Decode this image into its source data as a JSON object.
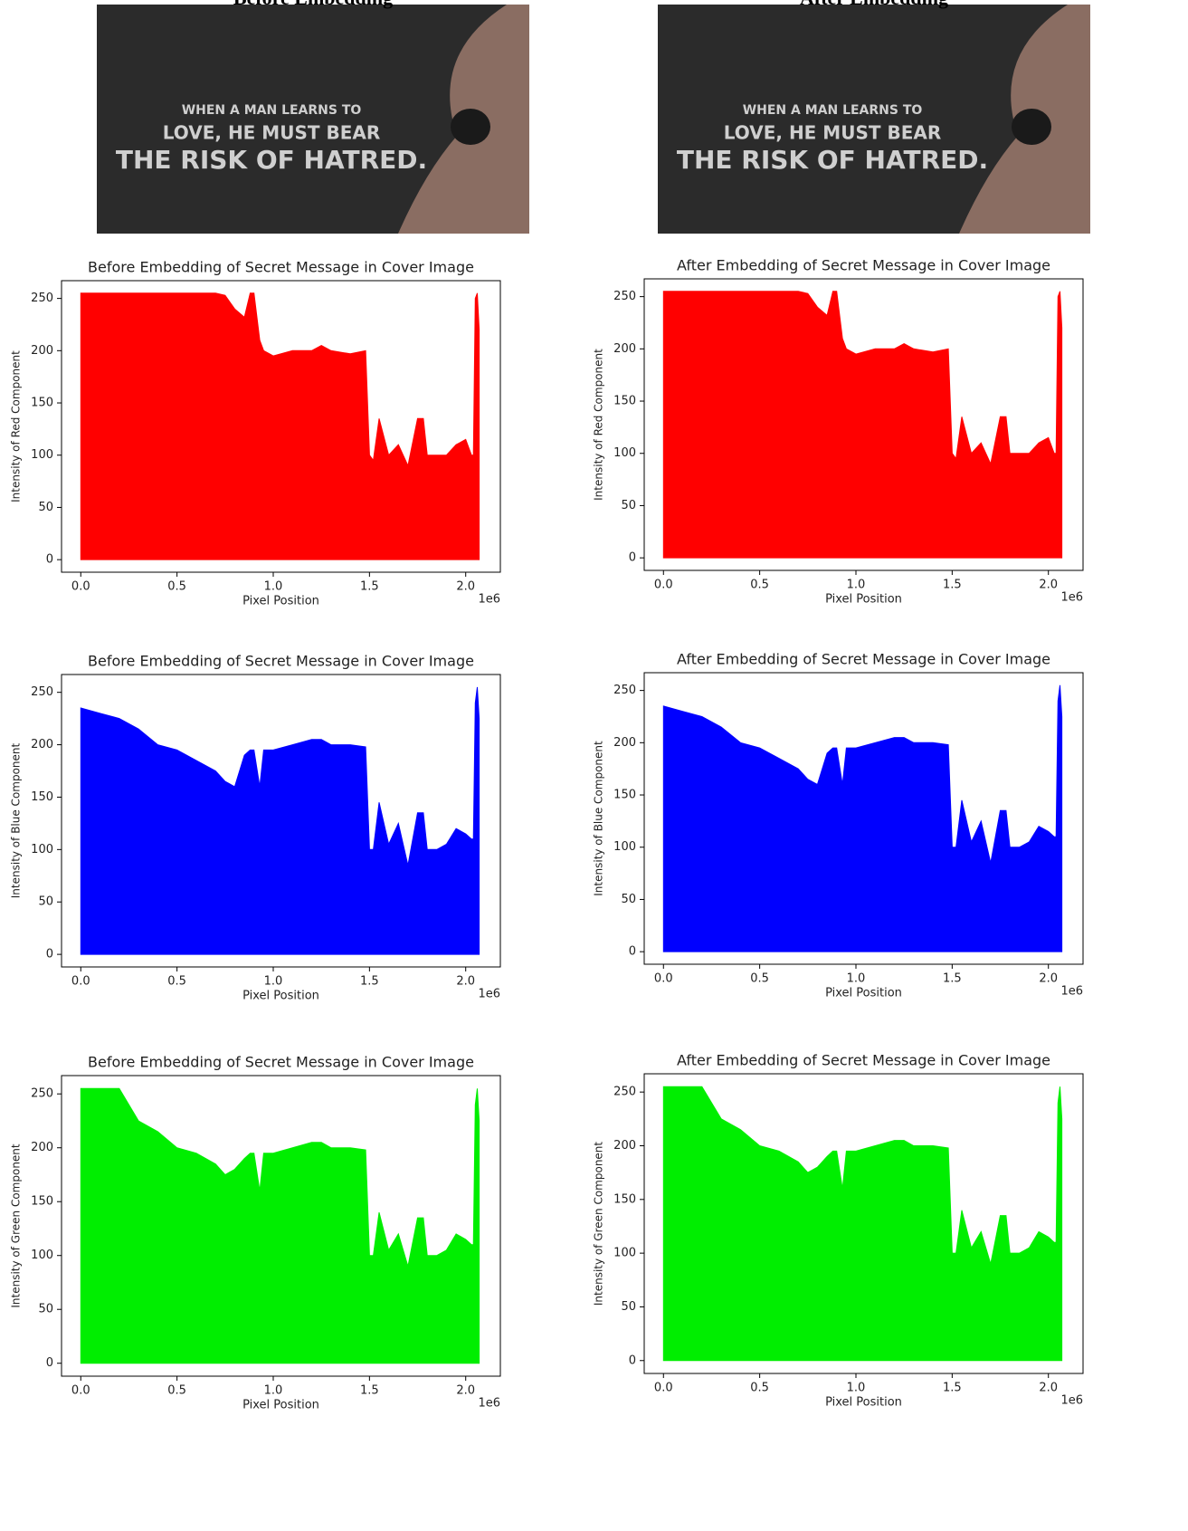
{
  "images": [
    {
      "caption": "Before Embedding",
      "lines": [
        "WHEN A MAN LEARNS TO",
        "LOVE, HE MUST BEAR",
        "THE RISK OF HATRED."
      ]
    },
    {
      "caption": "After Embedding",
      "lines": [
        "WHEN A MAN LEARNS TO",
        "LOVE, HE MUST BEAR",
        "THE RISK OF HATRED."
      ]
    }
  ],
  "chart_data": [
    {
      "type": "area",
      "title": "Before Embedding of Secret Message in Cover Image",
      "xlabel": "Pixel Position",
      "ylabel": "Intensity of Red Component",
      "x_offset_label": "1e6",
      "color": "#ff0000",
      "x": [
        0,
        100000,
        200000,
        300000,
        400000,
        500000,
        600000,
        700000,
        750000,
        800000,
        850000,
        880000,
        900000,
        930000,
        950000,
        1000000,
        1100000,
        1200000,
        1250000,
        1300000,
        1400000,
        1480000,
        1500000,
        1520000,
        1550000,
        1600000,
        1650000,
        1700000,
        1750000,
        1780000,
        1800000,
        1850000,
        1900000,
        1950000,
        2000000,
        2030000,
        2040000,
        2050000,
        2060000,
        2070000
      ],
      "values": [
        255,
        255,
        255,
        255,
        255,
        255,
        255,
        255,
        253,
        240,
        232,
        255,
        255,
        210,
        200,
        195,
        200,
        200,
        205,
        200,
        197,
        200,
        100,
        95,
        135,
        100,
        110,
        90,
        135,
        135,
        100,
        100,
        100,
        110,
        115,
        100,
        100,
        250,
        255,
        220
      ],
      "xlim": [
        -100000,
        2180000
      ],
      "ylim": [
        -12,
        267
      ],
      "xticks": [
        {
          "value": 0,
          "label": "0.0"
        },
        {
          "value": 500000,
          "label": "0.5"
        },
        {
          "value": 1000000,
          "label": "1.0"
        },
        {
          "value": 1500000,
          "label": "1.5"
        },
        {
          "value": 2000000,
          "label": "2.0"
        }
      ],
      "yticks": [
        0,
        50,
        100,
        150,
        200,
        250
      ]
    },
    {
      "type": "area",
      "title": "After Embedding of Secret Message in Cover Image",
      "xlabel": "Pixel Position",
      "ylabel": "Intensity of Red Component",
      "x_offset_label": "1e6",
      "color": "#ff0000",
      "x": [
        0,
        100000,
        200000,
        300000,
        400000,
        500000,
        600000,
        700000,
        750000,
        800000,
        850000,
        880000,
        900000,
        930000,
        950000,
        1000000,
        1100000,
        1200000,
        1250000,
        1300000,
        1400000,
        1480000,
        1500000,
        1520000,
        1550000,
        1600000,
        1650000,
        1700000,
        1750000,
        1780000,
        1800000,
        1850000,
        1900000,
        1950000,
        2000000,
        2030000,
        2040000,
        2050000,
        2060000,
        2070000
      ],
      "values": [
        255,
        255,
        255,
        255,
        255,
        255,
        255,
        255,
        253,
        240,
        232,
        255,
        255,
        210,
        200,
        195,
        200,
        200,
        205,
        200,
        197,
        200,
        100,
        95,
        135,
        100,
        110,
        90,
        135,
        135,
        100,
        100,
        100,
        110,
        115,
        100,
        100,
        250,
        255,
        220
      ],
      "xlim": [
        -100000,
        2180000
      ],
      "ylim": [
        -12,
        267
      ],
      "xticks": [
        {
          "value": 0,
          "label": "0.0"
        },
        {
          "value": 500000,
          "label": "0.5"
        },
        {
          "value": 1000000,
          "label": "1.0"
        },
        {
          "value": 1500000,
          "label": "1.5"
        },
        {
          "value": 2000000,
          "label": "2.0"
        }
      ],
      "yticks": [
        0,
        50,
        100,
        150,
        200,
        250
      ]
    },
    {
      "type": "area",
      "title": "Before Embedding of Secret Message in Cover Image",
      "xlabel": "Pixel Position",
      "ylabel": "Intensity of Blue Component",
      "x_offset_label": "1e6",
      "color": "#0000ff",
      "x": [
        0,
        100000,
        200000,
        300000,
        400000,
        500000,
        600000,
        700000,
        750000,
        800000,
        850000,
        880000,
        900000,
        930000,
        950000,
        1000000,
        1100000,
        1200000,
        1250000,
        1300000,
        1400000,
        1480000,
        1500000,
        1520000,
        1550000,
        1600000,
        1650000,
        1700000,
        1750000,
        1780000,
        1800000,
        1850000,
        1900000,
        1950000,
        2000000,
        2030000,
        2040000,
        2050000,
        2060000,
        2070000
      ],
      "values": [
        235,
        230,
        225,
        215,
        200,
        195,
        185,
        175,
        165,
        160,
        190,
        195,
        195,
        160,
        195,
        195,
        200,
        205,
        205,
        200,
        200,
        198,
        100,
        100,
        145,
        105,
        125,
        85,
        135,
        135,
        100,
        100,
        105,
        120,
        115,
        110,
        110,
        240,
        255,
        225
      ],
      "xlim": [
        -100000,
        2180000
      ],
      "ylim": [
        -12,
        267
      ],
      "xticks": [
        {
          "value": 0,
          "label": "0.0"
        },
        {
          "value": 500000,
          "label": "0.5"
        },
        {
          "value": 1000000,
          "label": "1.0"
        },
        {
          "value": 1500000,
          "label": "1.5"
        },
        {
          "value": 2000000,
          "label": "2.0"
        }
      ],
      "yticks": [
        0,
        50,
        100,
        150,
        200,
        250
      ]
    },
    {
      "type": "area",
      "title": "After Embedding of Secret Message in Cover Image",
      "xlabel": "Pixel Position",
      "ylabel": "Intensity of Blue Component",
      "x_offset_label": "1e6",
      "color": "#0000ff",
      "x": [
        0,
        100000,
        200000,
        300000,
        400000,
        500000,
        600000,
        700000,
        750000,
        800000,
        850000,
        880000,
        900000,
        930000,
        950000,
        1000000,
        1100000,
        1200000,
        1250000,
        1300000,
        1400000,
        1480000,
        1500000,
        1520000,
        1550000,
        1600000,
        1650000,
        1700000,
        1750000,
        1780000,
        1800000,
        1850000,
        1900000,
        1950000,
        2000000,
        2030000,
        2040000,
        2050000,
        2060000,
        2070000
      ],
      "values": [
        235,
        230,
        225,
        215,
        200,
        195,
        185,
        175,
        165,
        160,
        190,
        195,
        195,
        160,
        195,
        195,
        200,
        205,
        205,
        200,
        200,
        198,
        100,
        100,
        145,
        105,
        125,
        85,
        135,
        135,
        100,
        100,
        105,
        120,
        115,
        110,
        110,
        240,
        255,
        225
      ],
      "xlim": [
        -100000,
        2180000
      ],
      "ylim": [
        -12,
        267
      ],
      "xticks": [
        {
          "value": 0,
          "label": "0.0"
        },
        {
          "value": 500000,
          "label": "0.5"
        },
        {
          "value": 1000000,
          "label": "1.0"
        },
        {
          "value": 1500000,
          "label": "1.5"
        },
        {
          "value": 2000000,
          "label": "2.0"
        }
      ],
      "yticks": [
        0,
        50,
        100,
        150,
        200,
        250
      ]
    },
    {
      "type": "area",
      "title": "Before Embedding of Secret Message in Cover Image",
      "xlabel": "Pixel Position",
      "ylabel": "Intensity of Green Component",
      "x_offset_label": "1e6",
      "color": "#00ee00",
      "x": [
        0,
        100000,
        200000,
        300000,
        400000,
        500000,
        600000,
        700000,
        750000,
        800000,
        850000,
        880000,
        900000,
        930000,
        950000,
        1000000,
        1100000,
        1200000,
        1250000,
        1300000,
        1400000,
        1480000,
        1500000,
        1520000,
        1550000,
        1600000,
        1650000,
        1700000,
        1750000,
        1780000,
        1800000,
        1850000,
        1900000,
        1950000,
        2000000,
        2030000,
        2040000,
        2050000,
        2060000,
        2070000
      ],
      "values": [
        255,
        255,
        255,
        225,
        215,
        200,
        195,
        185,
        175,
        180,
        190,
        195,
        195,
        160,
        195,
        195,
        200,
        205,
        205,
        200,
        200,
        198,
        100,
        100,
        140,
        105,
        120,
        90,
        135,
        135,
        100,
        100,
        105,
        120,
        115,
        110,
        110,
        240,
        255,
        225
      ],
      "xlim": [
        -100000,
        2180000
      ],
      "ylim": [
        -12,
        267
      ],
      "xticks": [
        {
          "value": 0,
          "label": "0.0"
        },
        {
          "value": 500000,
          "label": "0.5"
        },
        {
          "value": 1000000,
          "label": "1.0"
        },
        {
          "value": 1500000,
          "label": "1.5"
        },
        {
          "value": 2000000,
          "label": "2.0"
        }
      ],
      "yticks": [
        0,
        50,
        100,
        150,
        200,
        250
      ]
    },
    {
      "type": "area",
      "title": "After Embedding of Secret Message in Cover Image",
      "xlabel": "Pixel Position",
      "ylabel": "Intensity of Green Component",
      "x_offset_label": "1e6",
      "color": "#00ee00",
      "x": [
        0,
        100000,
        200000,
        300000,
        400000,
        500000,
        600000,
        700000,
        750000,
        800000,
        850000,
        880000,
        900000,
        930000,
        950000,
        1000000,
        1100000,
        1200000,
        1250000,
        1300000,
        1400000,
        1480000,
        1500000,
        1520000,
        1550000,
        1600000,
        1650000,
        1700000,
        1750000,
        1780000,
        1800000,
        1850000,
        1900000,
        1950000,
        2000000,
        2030000,
        2040000,
        2050000,
        2060000,
        2070000
      ],
      "values": [
        255,
        255,
        255,
        225,
        215,
        200,
        195,
        185,
        175,
        180,
        190,
        195,
        195,
        160,
        195,
        195,
        200,
        205,
        205,
        200,
        200,
        198,
        100,
        100,
        140,
        105,
        120,
        90,
        135,
        135,
        100,
        100,
        105,
        120,
        115,
        110,
        110,
        240,
        255,
        225
      ],
      "xlim": [
        -100000,
        2180000
      ],
      "ylim": [
        -12,
        267
      ],
      "xticks": [
        {
          "value": 0,
          "label": "0.0"
        },
        {
          "value": 500000,
          "label": "0.5"
        },
        {
          "value": 1000000,
          "label": "1.0"
        },
        {
          "value": 1500000,
          "label": "1.5"
        },
        {
          "value": 2000000,
          "label": "2.0"
        }
      ],
      "yticks": [
        0,
        50,
        100,
        150,
        200,
        250
      ]
    }
  ]
}
